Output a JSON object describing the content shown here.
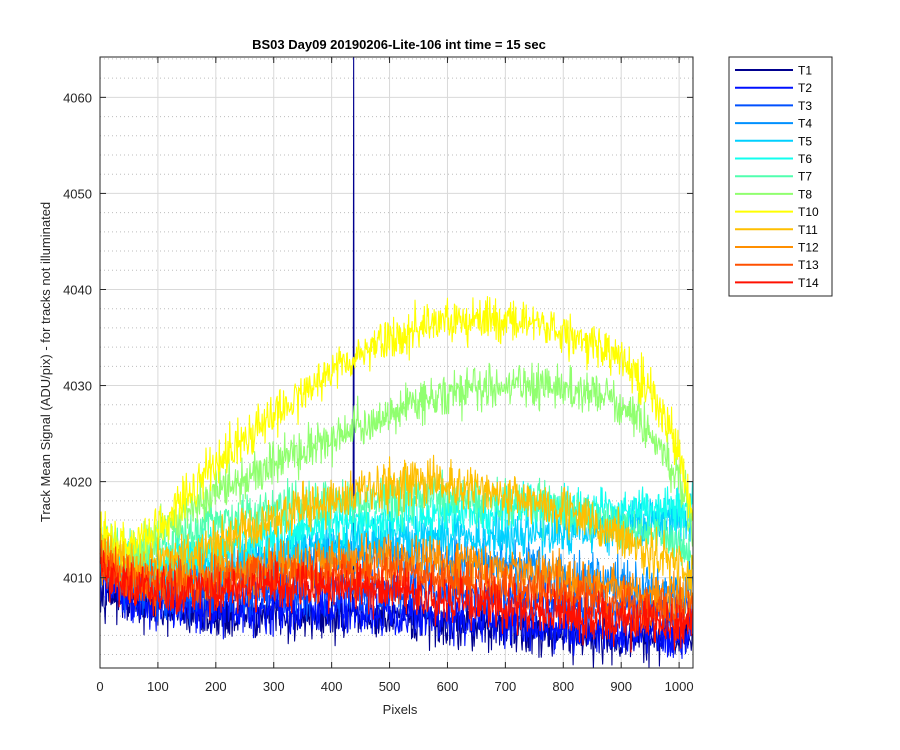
{
  "chart_data": {
    "type": "line",
    "title": "BS03 Day09 20190206-Lite-106 int time = 15 sec",
    "xlabel": "Pixels",
    "ylabel": "Track Mean Signal (ADU/pix) - for tracks not illuminated",
    "xlim": [
      0,
      1024
    ],
    "ylim": [
      4000.6,
      4064.2
    ],
    "xticks": [
      0,
      100,
      200,
      300,
      400,
      500,
      600,
      700,
      800,
      900,
      1000
    ],
    "yticks": [
      4010,
      4020,
      4030,
      4040,
      4050,
      4060
    ],
    "grid": true,
    "minor_grid": true,
    "legend_position": "outside-top-right",
    "series": [
      {
        "name": "T1",
        "color": "#00008f",
        "x": [
          0,
          50,
          100,
          200,
          300,
          400,
          437,
          438,
          439,
          500,
          600,
          700,
          800,
          900,
          1000,
          1024
        ],
        "y": [
          4009,
          4007.5,
          4006.5,
          4006,
          4006,
          4005.8,
          4005.8,
          4064.2,
          4005.8,
          4005.6,
          4005.2,
          4004.8,
          4004.2,
          4003.5,
          4003.5,
          4004
        ]
      },
      {
        "name": "T2",
        "color": "#0010ff",
        "x": [
          0,
          50,
          100,
          200,
          300,
          400,
          500,
          600,
          700,
          800,
          900,
          1000,
          1024
        ],
        "y": [
          4010,
          4008,
          4007,
          4006.8,
          4006.8,
          4006.6,
          4006.3,
          4005.8,
          4005.3,
          4004.8,
          4004.2,
          4004,
          4004.5
        ]
      },
      {
        "name": "T3",
        "color": "#0050ff",
        "x": [
          0,
          50,
          100,
          200,
          300,
          400,
          500,
          600,
          700,
          800,
          900,
          1000,
          1024
        ],
        "y": [
          4011,
          4008.5,
          4008,
          4008,
          4008.5,
          4008.8,
          4008.8,
          4008.5,
          4008,
          4007.5,
          4006.8,
          4006.5,
          4007
        ]
      },
      {
        "name": "T4",
        "color": "#0090ff",
        "x": [
          0,
          50,
          100,
          200,
          300,
          400,
          500,
          600,
          700,
          800,
          900,
          1000,
          1024
        ],
        "y": [
          4012,
          4010,
          4010,
          4010.8,
          4011.8,
          4012.3,
          4012.3,
          4011.8,
          4011.2,
          4010.3,
          4009.3,
          4008.5,
          4009
        ]
      },
      {
        "name": "T5",
        "color": "#00d0ff",
        "x": [
          0,
          50,
          100,
          200,
          300,
          400,
          500,
          600,
          700,
          800,
          900,
          1000,
          1024
        ],
        "y": [
          4012,
          4010.5,
          4010.5,
          4011.5,
          4012.5,
          4013.5,
          4014,
          4014.2,
          4014.5,
          4014.8,
          4015.5,
          4016.5,
          4016
        ]
      },
      {
        "name": "T6",
        "color": "#10ffef",
        "x": [
          0,
          50,
          100,
          200,
          300,
          400,
          500,
          600,
          700,
          800,
          900,
          1000,
          1024
        ],
        "y": [
          4013,
          4011,
          4011.5,
          4013,
          4014.5,
          4015.5,
          4016.2,
          4016.6,
          4017,
          4017,
          4017,
          4017.5,
          4018
        ]
      },
      {
        "name": "T7",
        "color": "#50ffaf",
        "x": [
          0,
          50,
          100,
          200,
          300,
          400,
          500,
          600,
          700,
          800,
          900,
          1000,
          1024
        ],
        "y": [
          4014,
          4012,
          4013,
          4015.5,
          4017,
          4017.8,
          4018.2,
          4018.5,
          4018,
          4017,
          4015.5,
          4013.5,
          4012
        ]
      },
      {
        "name": "T8",
        "color": "#90ff6f",
        "x": [
          0,
          50,
          100,
          150,
          200,
          300,
          400,
          500,
          600,
          700,
          800,
          850,
          900,
          950,
          1000,
          1024
        ],
        "y": [
          4014,
          4012.5,
          4014.5,
          4016.5,
          4019,
          4022,
          4024.5,
          4027,
          4029,
          4030,
          4029.8,
          4029.5,
          4028,
          4025,
          4020,
          4015
        ]
      },
      {
        "name": "T10",
        "color": "#ffff00",
        "x": [
          0,
          50,
          100,
          150,
          200,
          300,
          400,
          500,
          600,
          650,
          700,
          800,
          900,
          950,
          1000,
          1024
        ],
        "y": [
          4014.5,
          4013,
          4015.5,
          4018.5,
          4022,
          4027,
          4031.5,
          4035,
          4036.8,
          4037,
          4036.8,
          4035.5,
          4033,
          4029,
          4023,
          4016
        ]
      },
      {
        "name": "T11",
        "color": "#ffbf00",
        "x": [
          0,
          50,
          100,
          200,
          300,
          400,
          500,
          560,
          600,
          700,
          800,
          900,
          1000,
          1024
        ],
        "y": [
          4013,
          4011,
          4011.5,
          4013.5,
          4016,
          4018,
          4019.5,
          4020,
          4019.6,
          4018.8,
          4017,
          4014.5,
          4011,
          4010
        ]
      },
      {
        "name": "T12",
        "color": "#ff8f00",
        "x": [
          0,
          50,
          100,
          200,
          300,
          400,
          500,
          600,
          700,
          800,
          900,
          1000,
          1024
        ],
        "y": [
          4012,
          4010,
          4010,
          4010.3,
          4011,
          4011.8,
          4012,
          4011.5,
          4010.8,
          4009.8,
          4008.8,
          4008,
          4008
        ]
      },
      {
        "name": "T13",
        "color": "#ff5000",
        "x": [
          0,
          50,
          100,
          200,
          300,
          400,
          500,
          600,
          700,
          800,
          900,
          1000,
          1024
        ],
        "y": [
          4011.5,
          4009.5,
          4009,
          4009.5,
          4010.2,
          4010.5,
          4010.2,
          4009.8,
          4009,
          4008.2,
          4007.3,
          4006.5,
          4007
        ]
      },
      {
        "name": "T14",
        "color": "#ff1000",
        "x": [
          0,
          50,
          100,
          200,
          300,
          400,
          500,
          600,
          700,
          800,
          900,
          1000,
          1024
        ],
        "y": [
          4011,
          4009,
          4008.5,
          4008.5,
          4009,
          4009,
          4008.5,
          4007.8,
          4007,
          4006.2,
          4005.5,
          4005,
          4005.5
        ]
      }
    ]
  }
}
